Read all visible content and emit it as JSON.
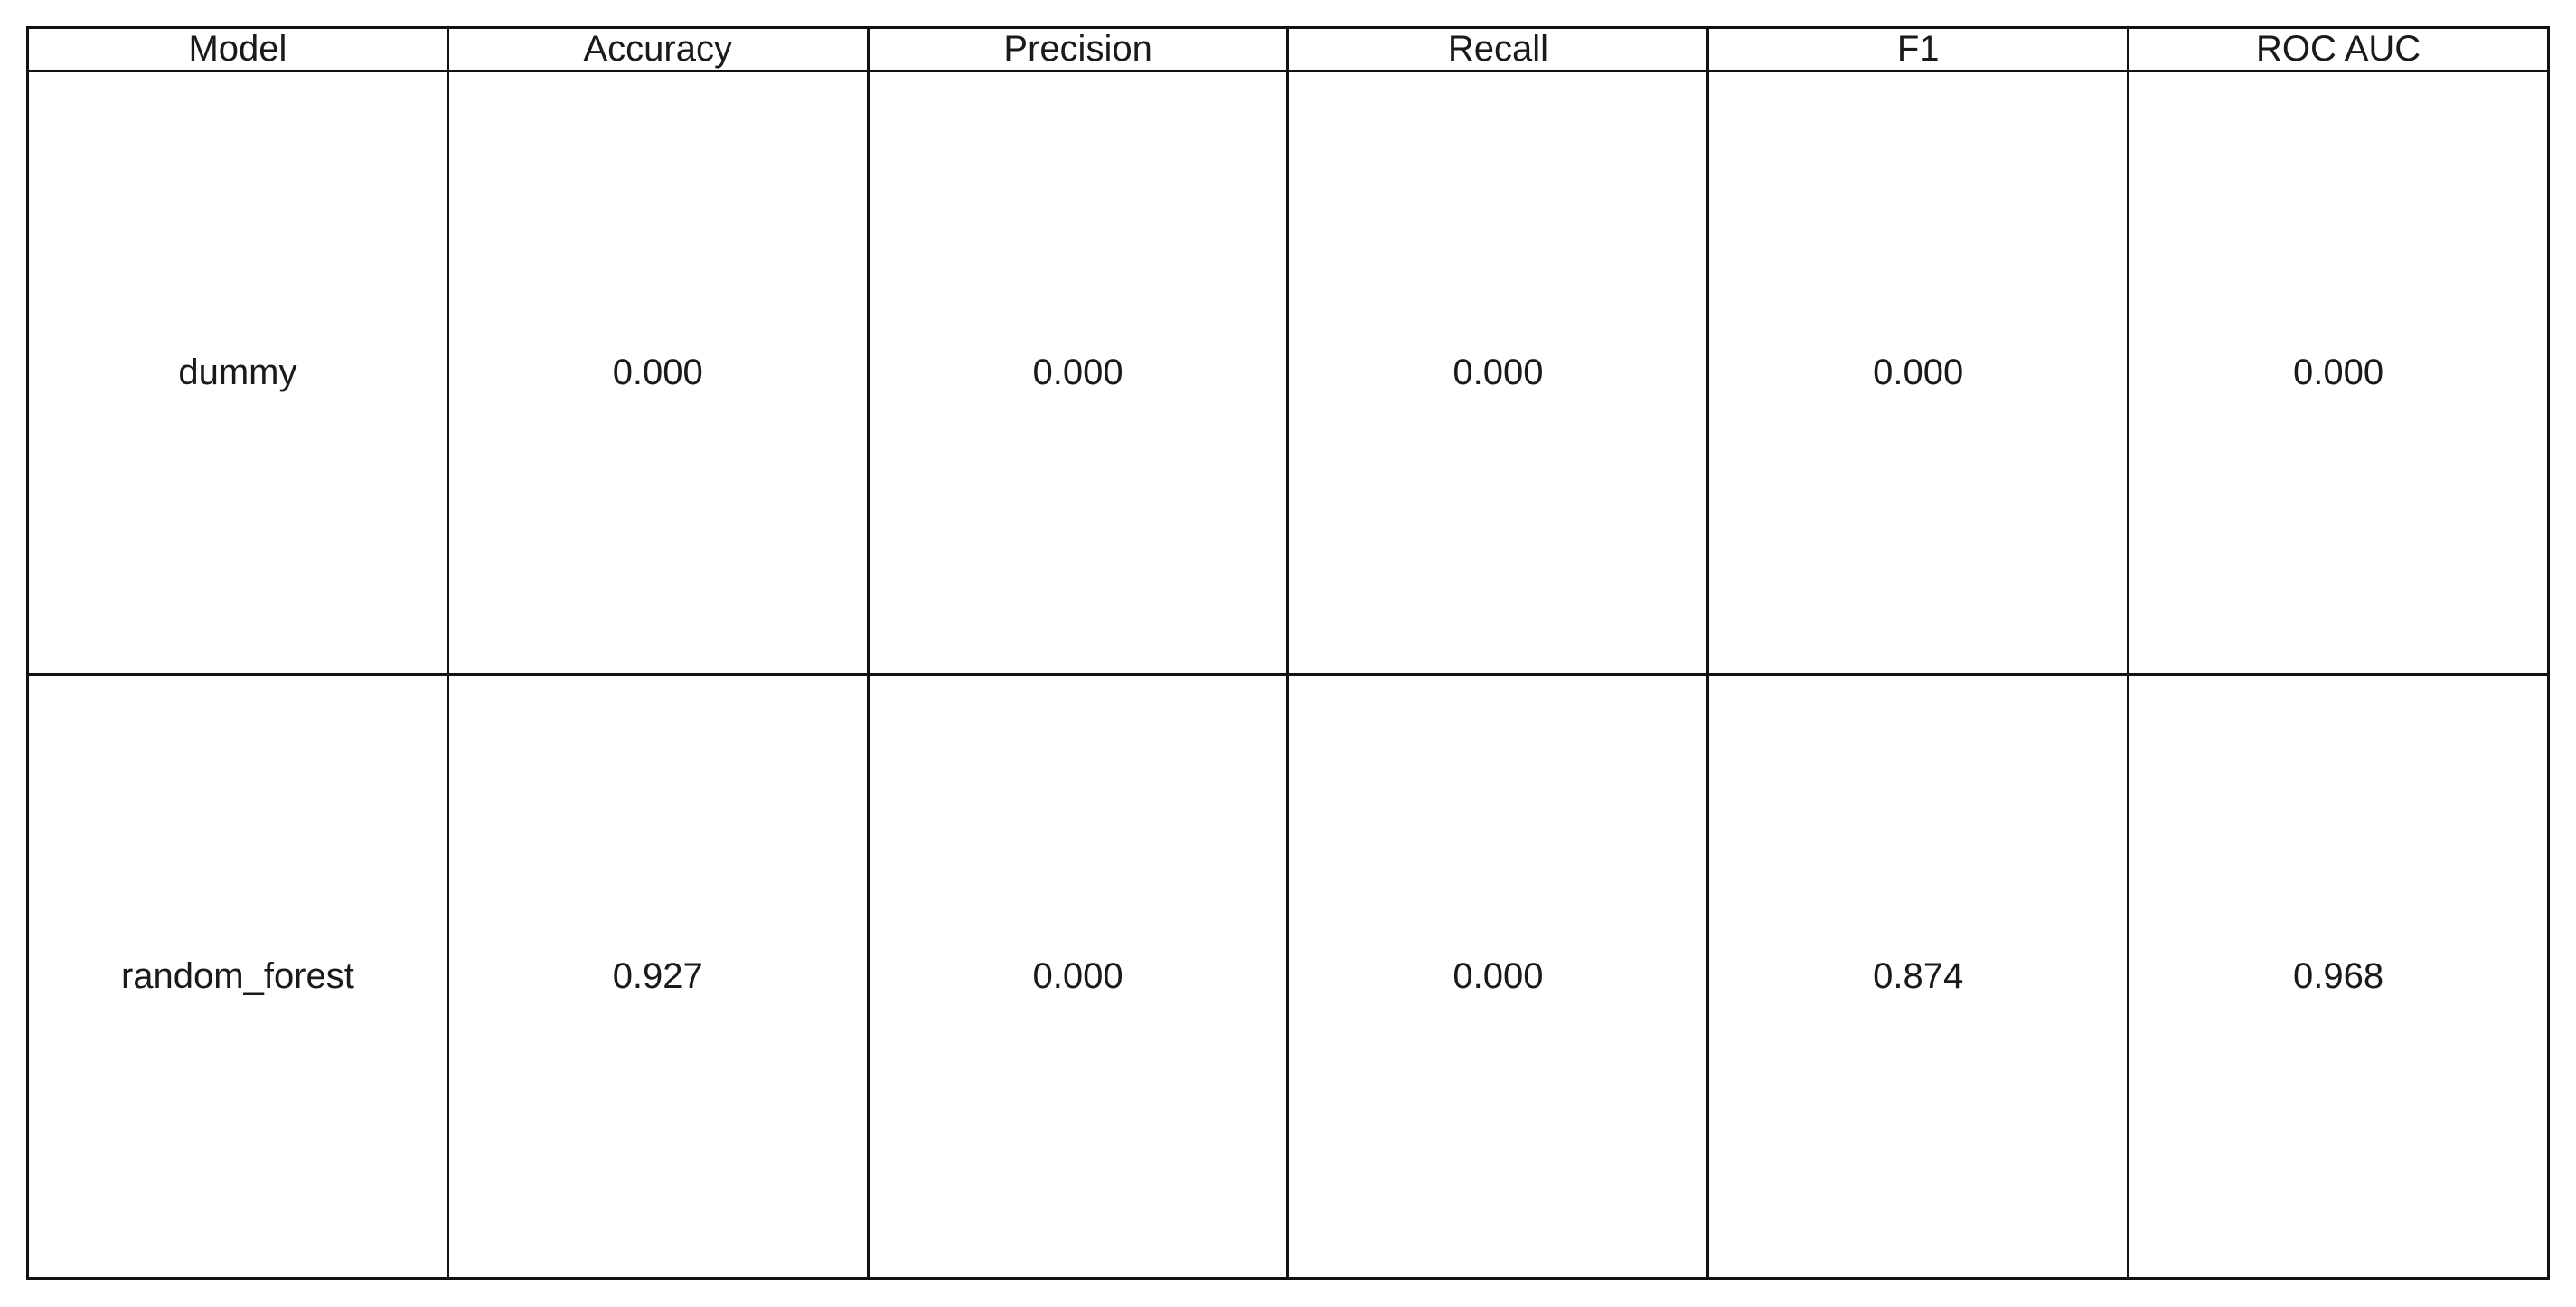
{
  "chart_data": {
    "type": "table",
    "columns": [
      "Model",
      "Accuracy",
      "Precision",
      "Recall",
      "F1",
      "ROC AUC"
    ],
    "rows": [
      [
        "dummy",
        "0.000",
        "0.000",
        "0.000",
        "0.000",
        "0.000"
      ],
      [
        "random_forest",
        "0.927",
        "0.000",
        "0.000",
        "0.874",
        "0.968"
      ]
    ]
  }
}
